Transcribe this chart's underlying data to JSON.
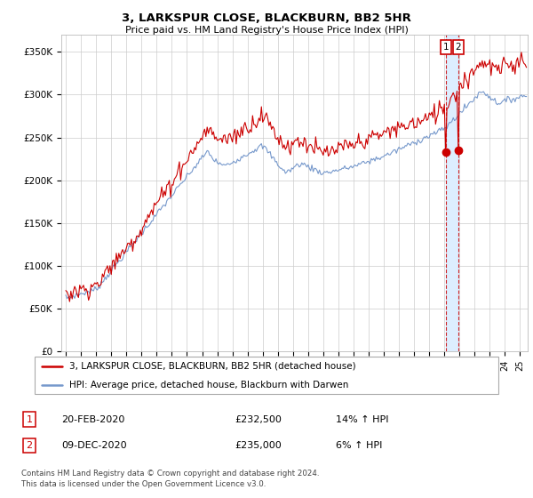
{
  "title": "3, LARKSPUR CLOSE, BLACKBURN, BB2 5HR",
  "subtitle": "Price paid vs. HM Land Registry's House Price Index (HPI)",
  "background_color": "#ffffff",
  "grid_color": "#cccccc",
  "red_line_color": "#cc0000",
  "blue_line_color": "#7799cc",
  "shade_color": "#ddeeff",
  "sale1_date_num": 2020.12,
  "sale2_date_num": 2020.92,
  "sale1_price": 232500,
  "sale2_price": 235000,
  "legend_entry1": "3, LARKSPUR CLOSE, BLACKBURN, BB2 5HR (detached house)",
  "legend_entry2": "HPI: Average price, detached house, Blackburn with Darwen",
  "footer1": "Contains HM Land Registry data © Crown copyright and database right 2024.",
  "footer2": "This data is licensed under the Open Government Licence v3.0.",
  "table_row1": [
    "1",
    "20-FEB-2020",
    "£232,500",
    "14% ↑ HPI"
  ],
  "table_row2": [
    "2",
    "09-DEC-2020",
    "£235,000",
    "6% ↑ HPI"
  ],
  "ylim_max": 370000,
  "ylim_min": 0,
  "xmin": 1994.7,
  "xmax": 2025.5
}
